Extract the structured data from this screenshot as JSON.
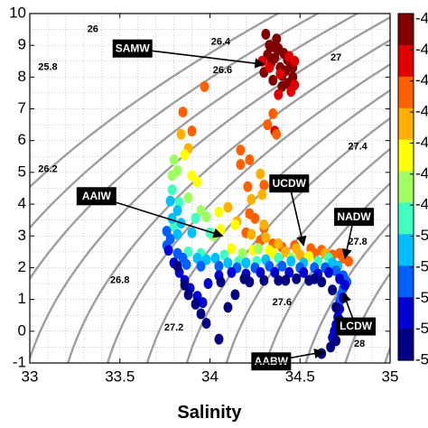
{
  "chart_data": {
    "type": "scatter",
    "xlabel": "Salinity",
    "ylabel": "",
    "xlim": [
      33,
      35
    ],
    "ylim": [
      -1,
      10
    ],
    "x_ticks": [
      "33",
      "33.5",
      "34",
      "34.5",
      "35"
    ],
    "y_ticks": [
      "-1",
      "0",
      "1",
      "2",
      "3",
      "4",
      "5",
      "6",
      "7",
      "8",
      "9",
      "10"
    ],
    "grid": "dotted",
    "colorbar": {
      "placement": "right",
      "colors": [
        "#000080",
        "#0000d0",
        "#0060ff",
        "#00bfff",
        "#40ffc0",
        "#a0ff60",
        "#ffff00",
        "#ffb000",
        "#ff6000",
        "#e00000",
        "#800000"
      ],
      "tick_labels": [
        "-4",
        "-4",
        "-4",
        "-4",
        "-4",
        "-4",
        "-4",
        "-5",
        "-5",
        "-5",
        "-5",
        "-5"
      ]
    },
    "isopycnals": [
      {
        "label": "25.8",
        "lx": 33.1,
        "ly": 8.3
      },
      {
        "label": "26",
        "lx": 33.35,
        "ly": 9.5
      },
      {
        "label": "26.2",
        "lx": 33.1,
        "ly": 5.1
      },
      {
        "label": "26.4",
        "lx": 34.06,
        "ly": 9.1
      },
      {
        "label": "26.6",
        "lx": 34.07,
        "ly": 8.2
      },
      {
        "label": "26.8",
        "lx": 33.5,
        "ly": 1.6
      },
      {
        "label": "27",
        "lx": 34.7,
        "ly": 8.6
      },
      {
        "label": "27.2",
        "lx": 33.8,
        "ly": 0.1
      },
      {
        "label": "27.4",
        "lx": 34.82,
        "ly": 5.8
      },
      {
        "label": "27.6",
        "lx": 34.4,
        "ly": 0.9
      },
      {
        "label": "27.8",
        "lx": 34.82,
        "ly": 2.8
      },
      {
        "label": "28",
        "lx": 34.83,
        "ly": -0.4
      }
    ],
    "water_masses": [
      {
        "name": "SAMW",
        "bx": 33.57,
        "by": 8.9,
        "ax": 34.3,
        "ay": 8.4
      },
      {
        "name": "AAIW",
        "bx": 33.37,
        "by": 4.25,
        "ax": 34.07,
        "ay": 3.0
      },
      {
        "name": "UCDW",
        "bx": 34.44,
        "by": 4.65,
        "ax": 34.52,
        "ay": 2.7
      },
      {
        "name": "NADW",
        "bx": 34.8,
        "by": 3.6,
        "ax": 34.75,
        "ay": 2.3
      },
      {
        "name": "LCDW",
        "bx": 34.81,
        "by": 0.15,
        "ax": 34.74,
        "ay": 1.2
      },
      {
        "name": "AABW",
        "bx": 34.34,
        "by": -0.95,
        "ax": 34.63,
        "ay": -0.65
      }
    ],
    "series": [
      {
        "color": "#800000",
        "points": [
          [
            34.31,
            9.35
          ],
          [
            34.33,
            9.0
          ],
          [
            34.35,
            8.95
          ],
          [
            34.38,
            8.85
          ],
          [
            34.41,
            8.75
          ],
          [
            34.36,
            8.6
          ],
          [
            34.43,
            8.55
          ],
          [
            34.34,
            8.45
          ],
          [
            34.45,
            8.4
          ],
          [
            34.39,
            8.3
          ],
          [
            34.42,
            8.2
          ],
          [
            34.3,
            8.15
          ],
          [
            34.4,
            8.05
          ],
          [
            34.46,
            8.0
          ],
          [
            34.35,
            7.9
          ],
          [
            34.43,
            7.8
          ],
          [
            34.4,
            7.7
          ],
          [
            34.32,
            8.7
          ],
          [
            34.38,
            8.9
          ],
          [
            34.37,
            9.2
          ],
          [
            34.46,
            8.3
          ]
        ]
      },
      {
        "color": "#e00000",
        "points": [
          [
            34.44,
            8.65
          ],
          [
            34.47,
            8.5
          ],
          [
            34.33,
            8.3
          ],
          [
            34.29,
            8.5
          ],
          [
            34.39,
            8.1
          ],
          [
            34.47,
            7.75
          ],
          [
            34.45,
            7.55
          ],
          [
            34.38,
            7.45
          ],
          [
            34.36,
            6.3
          ]
        ]
      },
      {
        "color": "#ff6000",
        "points": [
          [
            33.97,
            7.7
          ],
          [
            34.35,
            6.85
          ],
          [
            34.37,
            6.2
          ],
          [
            34.32,
            6.5
          ],
          [
            34.22,
            5.4
          ],
          [
            34.17,
            5.7
          ],
          [
            34.3,
            4.6
          ],
          [
            34.21,
            4.55
          ],
          [
            34.22,
            3.7
          ],
          [
            34.25,
            3.55
          ],
          [
            33.85,
            6.9
          ],
          [
            33.9,
            6.3
          ],
          [
            34.17,
            5.25
          ],
          [
            34.2,
            3.1
          ],
          [
            34.3,
            3.25
          ],
          [
            34.4,
            2.65
          ],
          [
            34.47,
            2.7
          ],
          [
            34.56,
            2.6
          ],
          [
            34.62,
            2.55
          ],
          [
            34.68,
            2.4
          ],
          [
            34.72,
            2.45
          ],
          [
            34.74,
            2.3
          ],
          [
            34.77,
            2.2
          ],
          [
            34.35,
            2.75
          ],
          [
            34.28,
            2.85
          ],
          [
            34.58,
            2.45
          ]
        ]
      },
      {
        "color": "#ffb000",
        "points": [
          [
            33.84,
            6.2
          ],
          [
            33.88,
            5.75
          ],
          [
            34.28,
            4.95
          ],
          [
            34.29,
            4.3
          ],
          [
            34.23,
            4.15
          ],
          [
            34.1,
            3.9
          ],
          [
            34.15,
            3.45
          ],
          [
            34.23,
            3.05
          ],
          [
            34.31,
            2.95
          ],
          [
            34.38,
            2.75
          ],
          [
            34.48,
            2.6
          ],
          [
            34.5,
            2.4
          ],
          [
            34.42,
            2.5
          ],
          [
            34.64,
            2.45
          ],
          [
            34.3,
            3.35
          ]
        ]
      },
      {
        "color": "#ffff00",
        "points": [
          [
            33.86,
            5.55
          ],
          [
            33.9,
            4.9
          ],
          [
            33.93,
            4.7
          ],
          [
            34.05,
            3.75
          ],
          [
            34.14,
            3.35
          ],
          [
            34.06,
            3.2
          ],
          [
            34.12,
            2.6
          ],
          [
            34.24,
            2.55
          ],
          [
            34.35,
            2.45
          ],
          [
            34.33,
            2.55
          ],
          [
            34.55,
            2.35
          ]
        ]
      },
      {
        "color": "#a0ff60",
        "points": [
          [
            33.8,
            5.4
          ],
          [
            33.82,
            5.05
          ],
          [
            33.88,
            4.2
          ],
          [
            33.98,
            3.6
          ],
          [
            33.95,
            3.8
          ],
          [
            34.02,
            3.0
          ],
          [
            34.18,
            2.45
          ],
          [
            34.27,
            2.6
          ],
          [
            34.45,
            2.3
          ],
          [
            33.79,
            4.9
          ]
        ]
      },
      {
        "color": "#40ffc0",
        "points": [
          [
            33.79,
            4.45
          ],
          [
            33.83,
            4.05
          ],
          [
            33.8,
            3.3
          ],
          [
            33.92,
            3.55
          ],
          [
            34.0,
            3.1
          ],
          [
            34.08,
            2.4
          ],
          [
            33.95,
            2.45
          ],
          [
            33.88,
            2.5
          ],
          [
            34.16,
            2.2
          ],
          [
            34.26,
            2.2
          ],
          [
            34.38,
            2.3
          ],
          [
            34.6,
            2.2
          ],
          [
            34.66,
            2.3
          ]
        ]
      },
      {
        "color": "#00bfff",
        "points": [
          [
            33.78,
            4.1
          ],
          [
            33.82,
            3.8
          ],
          [
            33.79,
            3.55
          ],
          [
            33.84,
            3.4
          ],
          [
            33.9,
            3.1
          ],
          [
            33.82,
            3.05
          ],
          [
            33.93,
            2.3
          ],
          [
            33.98,
            2.25
          ],
          [
            34.03,
            2.3
          ],
          [
            34.1,
            2.15
          ],
          [
            34.2,
            2.15
          ],
          [
            34.31,
            2.25
          ],
          [
            34.45,
            2.2
          ],
          [
            34.52,
            2.15
          ],
          [
            34.68,
            2.15
          ],
          [
            34.71,
            2.05
          ]
        ]
      },
      {
        "color": "#0060ff",
        "points": [
          [
            33.76,
            3.15
          ],
          [
            33.78,
            2.9
          ],
          [
            33.76,
            2.7
          ],
          [
            33.82,
            2.45
          ],
          [
            33.85,
            2.3
          ],
          [
            33.87,
            2.1
          ],
          [
            33.95,
            2.05
          ],
          [
            34.05,
            2.05
          ],
          [
            34.15,
            2.0
          ],
          [
            34.25,
            2.0
          ],
          [
            34.33,
            2.05
          ],
          [
            34.4,
            2.05
          ],
          [
            34.5,
            2.0
          ],
          [
            34.58,
            2.0
          ],
          [
            34.64,
            2.0
          ],
          [
            34.7,
            1.9
          ],
          [
            34.74,
            1.75
          ],
          [
            34.76,
            1.55
          ],
          [
            34.74,
            1.35
          ],
          [
            34.73,
            1.15
          ],
          [
            34.72,
            0.95
          ]
        ]
      },
      {
        "color": "#0000d0",
        "points": [
          [
            33.77,
            2.55
          ],
          [
            33.8,
            2.15
          ],
          [
            33.83,
            1.85
          ],
          [
            33.86,
            1.6
          ],
          [
            33.89,
            1.35
          ],
          [
            33.93,
            1.1
          ],
          [
            33.96,
            0.9
          ],
          [
            33.99,
            1.5
          ],
          [
            34.05,
            1.75
          ],
          [
            34.12,
            1.85
          ],
          [
            34.2,
            1.8
          ],
          [
            34.28,
            1.85
          ],
          [
            34.36,
            1.85
          ],
          [
            34.44,
            1.85
          ],
          [
            34.52,
            1.85
          ],
          [
            34.6,
            1.8
          ],
          [
            34.66,
            1.85
          ],
          [
            34.72,
            1.65
          ],
          [
            34.75,
            1.45
          ],
          [
            34.74,
            1.05
          ],
          [
            34.72,
            0.7
          ],
          [
            34.71,
            0.45
          ],
          [
            34.7,
            0.2
          ],
          [
            34.69,
            0.0
          ],
          [
            34.68,
            -0.2
          ]
        ]
      },
      {
        "color": "#000080",
        "points": [
          [
            33.82,
            2.05
          ],
          [
            33.86,
            1.45
          ],
          [
            33.88,
            1.15
          ],
          [
            33.92,
            0.85
          ],
          [
            33.95,
            0.55
          ],
          [
            33.98,
            0.25
          ],
          [
            34.05,
            -0.25
          ],
          [
            34.1,
            0.75
          ],
          [
            34.14,
            1.15
          ],
          [
            34.06,
            1.55
          ],
          [
            34.22,
            1.55
          ],
          [
            34.3,
            1.6
          ],
          [
            34.38,
            1.6
          ],
          [
            34.48,
            1.65
          ],
          [
            34.55,
            1.6
          ],
          [
            34.62,
            1.55
          ],
          [
            34.68,
            1.3
          ],
          [
            34.7,
            0.75
          ],
          [
            34.72,
            0.35
          ],
          [
            34.7,
            -0.3
          ],
          [
            34.67,
            -0.5
          ],
          [
            34.62,
            -0.7
          ],
          [
            34.58,
            1.65
          ],
          [
            34.42,
            1.6
          ],
          [
            34.19,
            1.65
          ]
        ]
      }
    ]
  }
}
